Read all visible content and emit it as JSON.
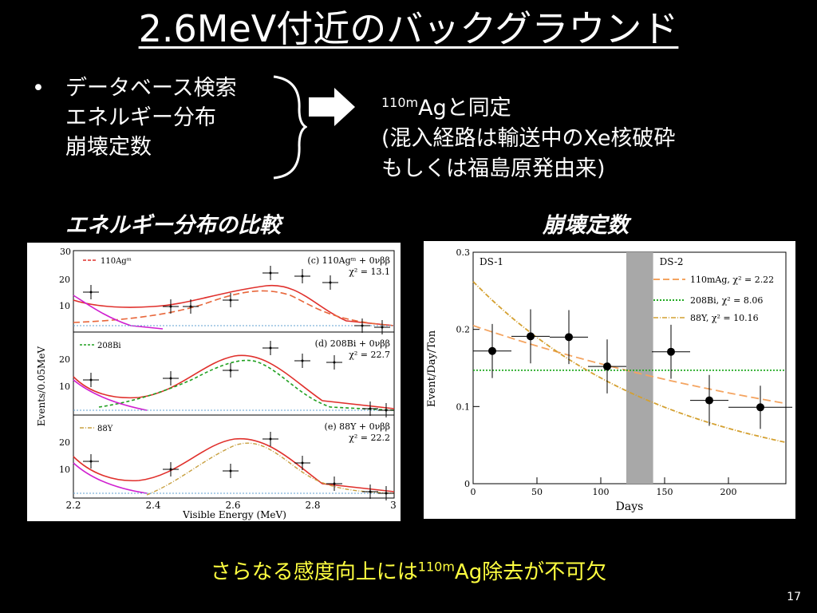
{
  "slide": {
    "title": "2.6MeV付近のバックグラウンド",
    "bullet_symbol": "•",
    "bullet_lines": [
      "データベース検索",
      "エネルギー分布",
      "崩壊定数"
    ],
    "result": {
      "sup": "110m",
      "line1": "Agと同定",
      "line2": "(混入経路は輸送中のXe核破砕",
      "line3": "もしくは福島原発由来)"
    },
    "caption_left": "エネルギー分布の比較",
    "caption_right": "崩壊定数",
    "conclusion": {
      "pre": "さらなる感度向上には",
      "sup": "110m",
      "post": "Ag除去が不可欠"
    },
    "page_number": "17",
    "colors": {
      "background": "#000000",
      "text": "#ffffff",
      "highlight": "#ffff40"
    }
  },
  "energy_plot": {
    "ylabel": "Events/0.05MeV",
    "xlabel": "Visible Energy (MeV)",
    "x_ticks": [
      "2.2",
      "2.4",
      "2.6",
      "2.8",
      "3"
    ],
    "y_top_tick": "30",
    "y_ticks": [
      "20",
      "10"
    ],
    "panels": [
      {
        "legend": "110Agᵐ",
        "label": "(c) 110Agᵐ + 0νββ",
        "chi": "χ² = 13.1"
      },
      {
        "legend": "208Bi",
        "label": "(d) 208Bi + 0νββ",
        "chi": "χ² = 22.7"
      },
      {
        "legend": "88Y",
        "label": "(e) 88Y + 0νββ",
        "chi": "χ² = 22.2"
      }
    ]
  },
  "chart_data": {
    "type": "scatter",
    "xlabel": "Days",
    "ylabel": "Event/Day/Ton",
    "xlim": [
      0,
      245
    ],
    "ylim": [
      0,
      0.3
    ],
    "x_ticks": [
      "0",
      "50",
      "100",
      "150",
      "200"
    ],
    "y_ticks": [
      "0",
      "0.1",
      "0.2",
      "0.3"
    ],
    "region_labels": [
      "DS-1",
      "DS-2"
    ],
    "points": [
      {
        "x": 15,
        "y": 0.172,
        "xerr": 15,
        "yerr": 0.035
      },
      {
        "x": 45,
        "y": 0.191,
        "xerr": 15,
        "yerr": 0.035
      },
      {
        "x": 75,
        "y": 0.19,
        "xerr": 15,
        "yerr": 0.035
      },
      {
        "x": 105,
        "y": 0.152,
        "xerr": 15,
        "yerr": 0.035
      },
      {
        "x": 155,
        "y": 0.171,
        "xerr": 15,
        "yerr": 0.035
      },
      {
        "x": 185,
        "y": 0.108,
        "xerr": 15,
        "yerr": 0.033
      },
      {
        "x": 225,
        "y": 0.099,
        "xerr": 25,
        "yerr": 0.028
      }
    ],
    "series": [
      {
        "name": "110mAg,  χ² = 2.22",
        "color": "#f4a460",
        "style": "dashed",
        "y0": 0.205,
        "halflife_days": 250
      },
      {
        "name": "208Bi,  χ² = 8.06",
        "color": "#22aa22",
        "style": "dotted",
        "y0": 0.147,
        "halflife_days": 0
      },
      {
        "name": "88Y,  χ² = 10.16",
        "color": "#d4a030",
        "style": "dashdot",
        "y0": 0.262,
        "halflife_days": 107
      }
    ]
  }
}
